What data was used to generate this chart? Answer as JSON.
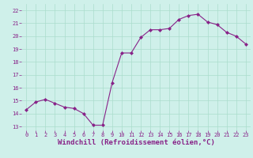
{
  "x": [
    0,
    1,
    2,
    3,
    4,
    5,
    6,
    7,
    8,
    9,
    10,
    11,
    12,
    13,
    14,
    15,
    16,
    17,
    18,
    19,
    20,
    21,
    22,
    23
  ],
  "y": [
    14.3,
    14.9,
    15.1,
    14.8,
    14.5,
    14.4,
    14.0,
    13.1,
    13.1,
    16.4,
    18.7,
    18.7,
    19.9,
    20.5,
    20.5,
    20.6,
    21.3,
    21.6,
    21.7,
    21.1,
    20.9,
    20.3,
    20.0,
    19.4
  ],
  "line_color": "#882288",
  "marker": "D",
  "marker_size": 2.0,
  "bg_color": "#cff0ea",
  "grid_color": "#aaddcc",
  "xlabel": "Windchill (Refroidissement éolien,°C)",
  "xlabel_color": "#882288",
  "tick_color": "#882288",
  "ylim": [
    12.7,
    22.5
  ],
  "yticks": [
    13,
    14,
    15,
    16,
    17,
    18,
    19,
    20,
    21,
    22
  ],
  "xticks": [
    0,
    1,
    2,
    3,
    4,
    5,
    6,
    7,
    8,
    9,
    10,
    11,
    12,
    13,
    14,
    15,
    16,
    17,
    18,
    19,
    20,
    21,
    22,
    23
  ],
  "tick_fontsize": 5.0,
  "xlabel_fontsize": 6.5,
  "linewidth": 0.8
}
